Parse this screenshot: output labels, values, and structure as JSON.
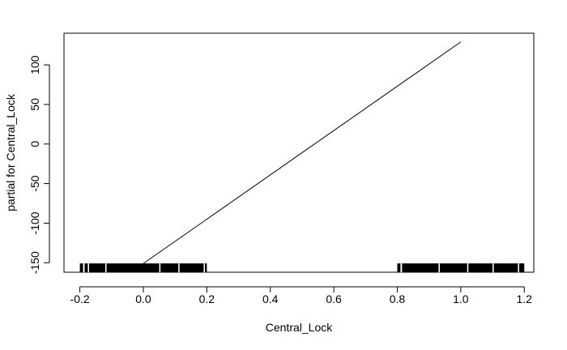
{
  "chart_data": {
    "type": "line",
    "title": "",
    "xlabel": "Central_Lock",
    "ylabel": "partial for Central_Lock",
    "xlim": [
      -0.25,
      1.23
    ],
    "ylim": [
      -162,
      140
    ],
    "grid": false,
    "x_ticks": [
      {
        "value": -0.2,
        "label": "-0.2"
      },
      {
        "value": 0.0,
        "label": "0.0"
      },
      {
        "value": 0.2,
        "label": "0.2"
      },
      {
        "value": 0.4,
        "label": "0.4"
      },
      {
        "value": 0.6,
        "label": "0.6"
      },
      {
        "value": 0.8,
        "label": "0.8"
      },
      {
        "value": 1.0,
        "label": "1.0"
      },
      {
        "value": 1.2,
        "label": "1.2"
      }
    ],
    "y_ticks": [
      {
        "value": -150,
        "label": "-150"
      },
      {
        "value": -100,
        "label": "-100"
      },
      {
        "value": -50,
        "label": "-50"
      },
      {
        "value": 0,
        "label": "0"
      },
      {
        "value": 50,
        "label": "50"
      },
      {
        "value": 100,
        "label": "100"
      }
    ],
    "series": [
      {
        "x": [
          0.0,
          1.0
        ],
        "y": [
          -151,
          129
        ],
        "color": "#000000"
      }
    ],
    "rug": {
      "baseline": -156,
      "color": "#000000",
      "clusters": [
        {
          "from": -0.2,
          "to": 0.2
        },
        {
          "from": 0.8,
          "to": 1.2
        }
      ]
    }
  }
}
